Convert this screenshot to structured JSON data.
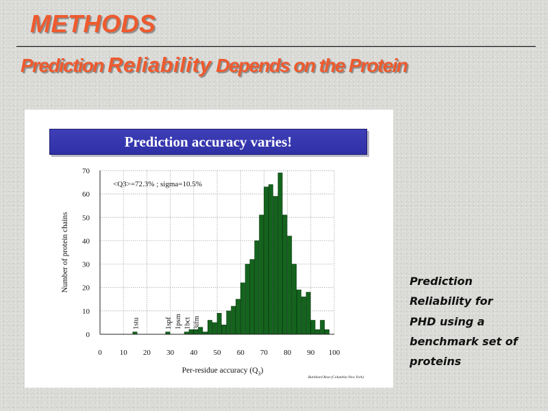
{
  "slide": {
    "title": "METHODS",
    "subtitle": {
      "part1": "Prediction ",
      "part2": "Reliability",
      "part3": " Depends on the Protein"
    },
    "side_note_lines": [
      "Prediction",
      "Reliability for",
      "PHD using a",
      "benchmark set of",
      "proteins"
    ]
  },
  "chart_data": {
    "type": "bar",
    "title": "Prediction accuracy varies!",
    "annotation": "<Q3>=72.3% ; sigma=10.5%",
    "xlabel": "Per-residue accuracy (Q",
    "xlabel_sub": "3",
    "xlabel_end": ")",
    "ylabel": "Number of protein chains",
    "credit": "Burkhard Rost (Columbia New York)",
    "xlim": [
      0,
      100
    ],
    "ylim": [
      0,
      70
    ],
    "xticks": [
      0,
      10,
      20,
      30,
      40,
      50,
      60,
      70,
      80,
      90,
      100
    ],
    "yticks": [
      0,
      10,
      20,
      30,
      40,
      50,
      60,
      70
    ],
    "bin_width": 2,
    "bar_color": "#14641e",
    "grid": true,
    "bins_start": [
      14,
      28,
      36,
      38,
      40,
      42,
      44,
      46,
      48,
      50,
      52,
      54,
      56,
      58,
      60,
      62,
      64,
      66,
      68,
      70,
      72,
      74,
      76,
      78,
      80,
      82,
      84,
      86,
      88,
      90,
      92,
      94,
      96
    ],
    "values": [
      1,
      1,
      1,
      2,
      2,
      3,
      1,
      6,
      5,
      9,
      4,
      10,
      12,
      15,
      22,
      30,
      32,
      40,
      51,
      63,
      64,
      59,
      69,
      51,
      42,
      30,
      19,
      16,
      18,
      6,
      2,
      6,
      2
    ],
    "labeled_chains": [
      {
        "name": "1stu",
        "x": 15
      },
      {
        "name": "1spf",
        "x": 29
      },
      {
        "name": "1psm",
        "x": 33
      },
      {
        "name": "1bct",
        "x": 37
      },
      {
        "name": "3ifm",
        "x": 41
      }
    ]
  }
}
